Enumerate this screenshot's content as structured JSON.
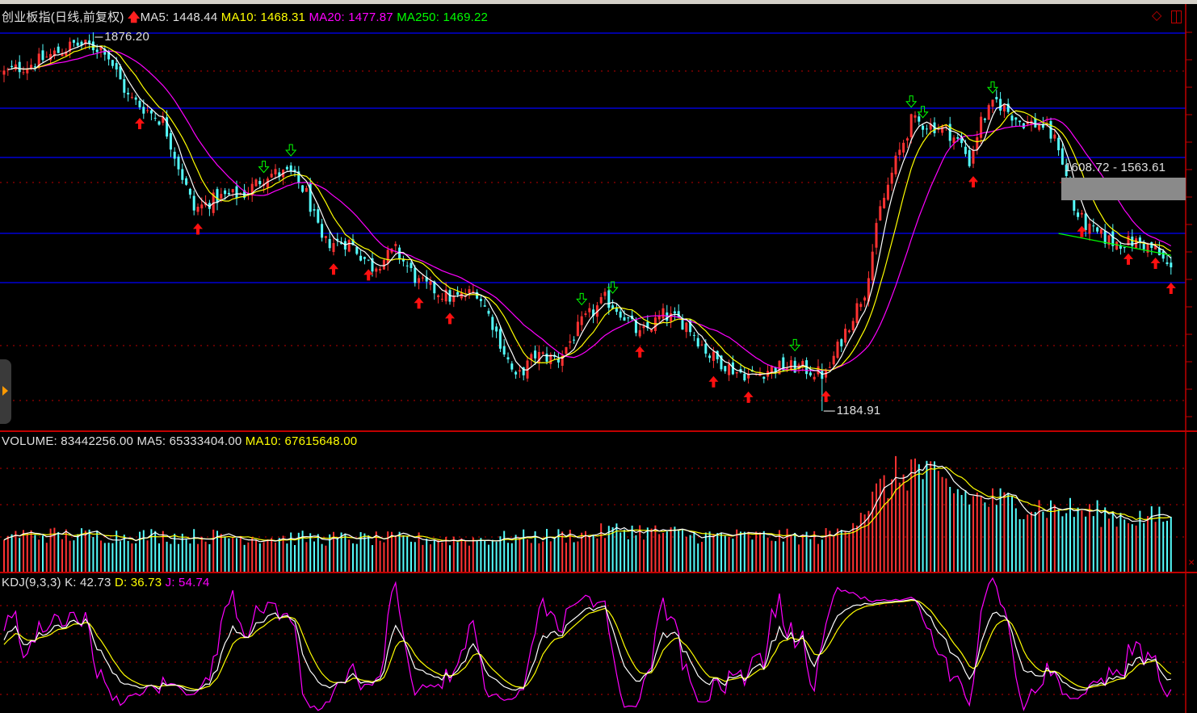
{
  "header": {
    "title": "创业板指(日线,前复权)",
    "ma5": "MA5: 1448.44",
    "ma10": "MA10: 1468.31",
    "ma20": "MA20: 1477.87",
    "ma250": "MA250: 1469.22"
  },
  "volume_header": {
    "volume": "VOLUME: 83442256.00",
    "ma5": "MA5: 65333404.00",
    "ma10": "MA10: 67615648.00"
  },
  "kdj_header": {
    "name": "KDJ(9,3,3)",
    "k": "K: 42.73",
    "d": "D: 36.73",
    "j": "J: 54.74"
  },
  "annotations": {
    "high_label": "1876.20",
    "low_label": "1184.91",
    "range_label": "1608.72 - 1563.61"
  },
  "colors": {
    "up": "#ff3232",
    "down": "#54fcfc",
    "ma5": "#ffffff",
    "ma10": "#ffff00",
    "ma20": "#ff00ff",
    "ma250": "#00ff00",
    "grid_blue": "#0000ff",
    "grid_red": "#c00000"
  },
  "chart_data": [
    {
      "type": "candlestick",
      "title": "创业板指(日线,前复权)",
      "high": 1876.2,
      "low": 1184.91,
      "ylim": [
        1160,
        1900
      ],
      "close_waypoints": [
        [
          0,
          1802
        ],
        [
          9,
          1824
        ],
        [
          18,
          1854
        ],
        [
          26,
          1847
        ],
        [
          32,
          1758
        ],
        [
          41,
          1714
        ],
        [
          49,
          1552
        ],
        [
          55,
          1574
        ],
        [
          62,
          1582
        ],
        [
          68,
          1618
        ],
        [
          74,
          1618
        ],
        [
          78,
          1582
        ],
        [
          82,
          1493
        ],
        [
          89,
          1493
        ],
        [
          95,
          1448
        ],
        [
          101,
          1478
        ],
        [
          107,
          1419
        ],
        [
          116,
          1389
        ],
        [
          122,
          1404
        ],
        [
          126,
          1345
        ],
        [
          132,
          1242
        ],
        [
          137,
          1287
        ],
        [
          143,
          1280
        ],
        [
          149,
          1345
        ],
        [
          155,
          1389
        ],
        [
          159,
          1367
        ],
        [
          164,
          1323
        ],
        [
          170,
          1360
        ],
        [
          176,
          1345
        ],
        [
          182,
          1287
        ],
        [
          189,
          1257
        ],
        [
          193,
          1250
        ],
        [
          199,
          1265
        ],
        [
          205,
          1265
        ],
        [
          212,
          1250
        ],
        [
          216,
          1316
        ],
        [
          222,
          1404
        ],
        [
          226,
          1552
        ],
        [
          230,
          1640
        ],
        [
          234,
          1714
        ],
        [
          239,
          1706
        ],
        [
          243,
          1699
        ],
        [
          247,
          1670
        ],
        [
          249,
          1640
        ],
        [
          252,
          1714
        ],
        [
          256,
          1750
        ],
        [
          262,
          1714
        ],
        [
          268,
          1706
        ],
        [
          272,
          1670
        ],
        [
          276,
          1552
        ],
        [
          280,
          1515
        ],
        [
          286,
          1493
        ],
        [
          293,
          1493
        ],
        [
          297,
          1478
        ],
        [
          301,
          1441
        ]
      ],
      "moving_averages": [
        "MA5",
        "MA10",
        "MA20",
        "MA250"
      ],
      "buy_signal_days": [
        35,
        50,
        85,
        94,
        107,
        115,
        164,
        183,
        192,
        212,
        250,
        278,
        290,
        297,
        301
      ],
      "sell_signal_days": [
        67,
        74,
        149,
        157,
        204,
        234,
        237,
        255
      ]
    },
    {
      "type": "bar",
      "title": "VOLUME",
      "volume_waypoints": [
        [
          0,
          58
        ],
        [
          40,
          56
        ],
        [
          80,
          52
        ],
        [
          120,
          50
        ],
        [
          150,
          58
        ],
        [
          160,
          66
        ],
        [
          180,
          56
        ],
        [
          210,
          54
        ],
        [
          215,
          60
        ],
        [
          222,
          100
        ],
        [
          228,
          140
        ],
        [
          235,
          165
        ],
        [
          240,
          140
        ],
        [
          250,
          115
        ],
        [
          270,
          100
        ],
        [
          290,
          85
        ],
        [
          301,
          83.44
        ]
      ],
      "unit": "million"
    },
    {
      "type": "line",
      "title": "KDJ(9,3,3)",
      "series": [
        {
          "name": "K"
        },
        {
          "name": "D"
        },
        {
          "name": "J"
        }
      ]
    }
  ]
}
